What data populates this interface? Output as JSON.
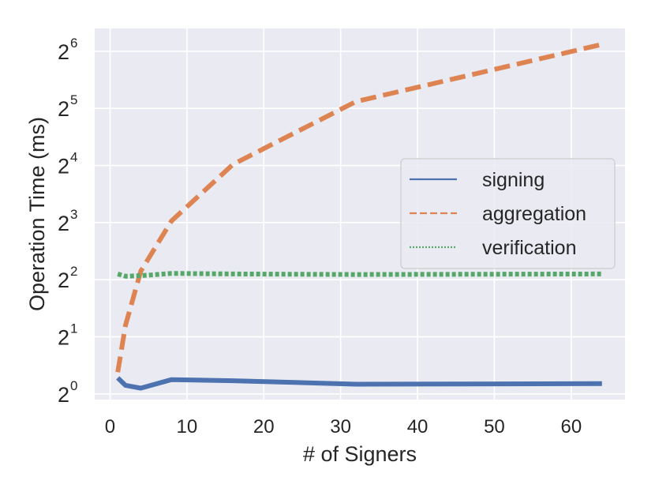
{
  "chart_data": {
    "type": "line",
    "title": "",
    "xlabel": "# of Signers",
    "ylabel": "Operation Time (ms)",
    "xlim": [
      -2,
      67
    ],
    "ylim": [
      -0.1,
      6.4
    ],
    "yscale": "log2",
    "grid": true,
    "background": "#eaeaf2",
    "legend": "center-right",
    "xticks": [
      0,
      10,
      20,
      30,
      40,
      50,
      60
    ],
    "yticks": [
      {
        "value": 0,
        "base": "2",
        "exp": "0"
      },
      {
        "value": 1,
        "base": "2",
        "exp": "1"
      },
      {
        "value": 2,
        "base": "2",
        "exp": "2"
      },
      {
        "value": 3,
        "base": "2",
        "exp": "3"
      },
      {
        "value": 4,
        "base": "2",
        "exp": "4"
      },
      {
        "value": 5,
        "base": "2",
        "exp": "5"
      },
      {
        "value": 6,
        "base": "2",
        "exp": "6"
      }
    ],
    "x": [
      1,
      2,
      4,
      8,
      16,
      32,
      64
    ],
    "series": [
      {
        "name": "signing",
        "style": "solid",
        "color": "#4c72b0",
        "log2_values": [
          0.28,
          0.15,
          0.1,
          0.25,
          0.23,
          0.17,
          0.18
        ]
      },
      {
        "name": "aggregation",
        "style": "dashed",
        "color": "#dd8452",
        "log2_values": [
          0.38,
          1.2,
          2.15,
          3.03,
          4.02,
          5.12,
          6.12
        ]
      },
      {
        "name": "verification",
        "style": "dotted",
        "color": "#55a868",
        "log2_values": [
          2.1,
          2.06,
          2.07,
          2.11,
          2.1,
          2.09,
          2.1
        ]
      }
    ]
  }
}
